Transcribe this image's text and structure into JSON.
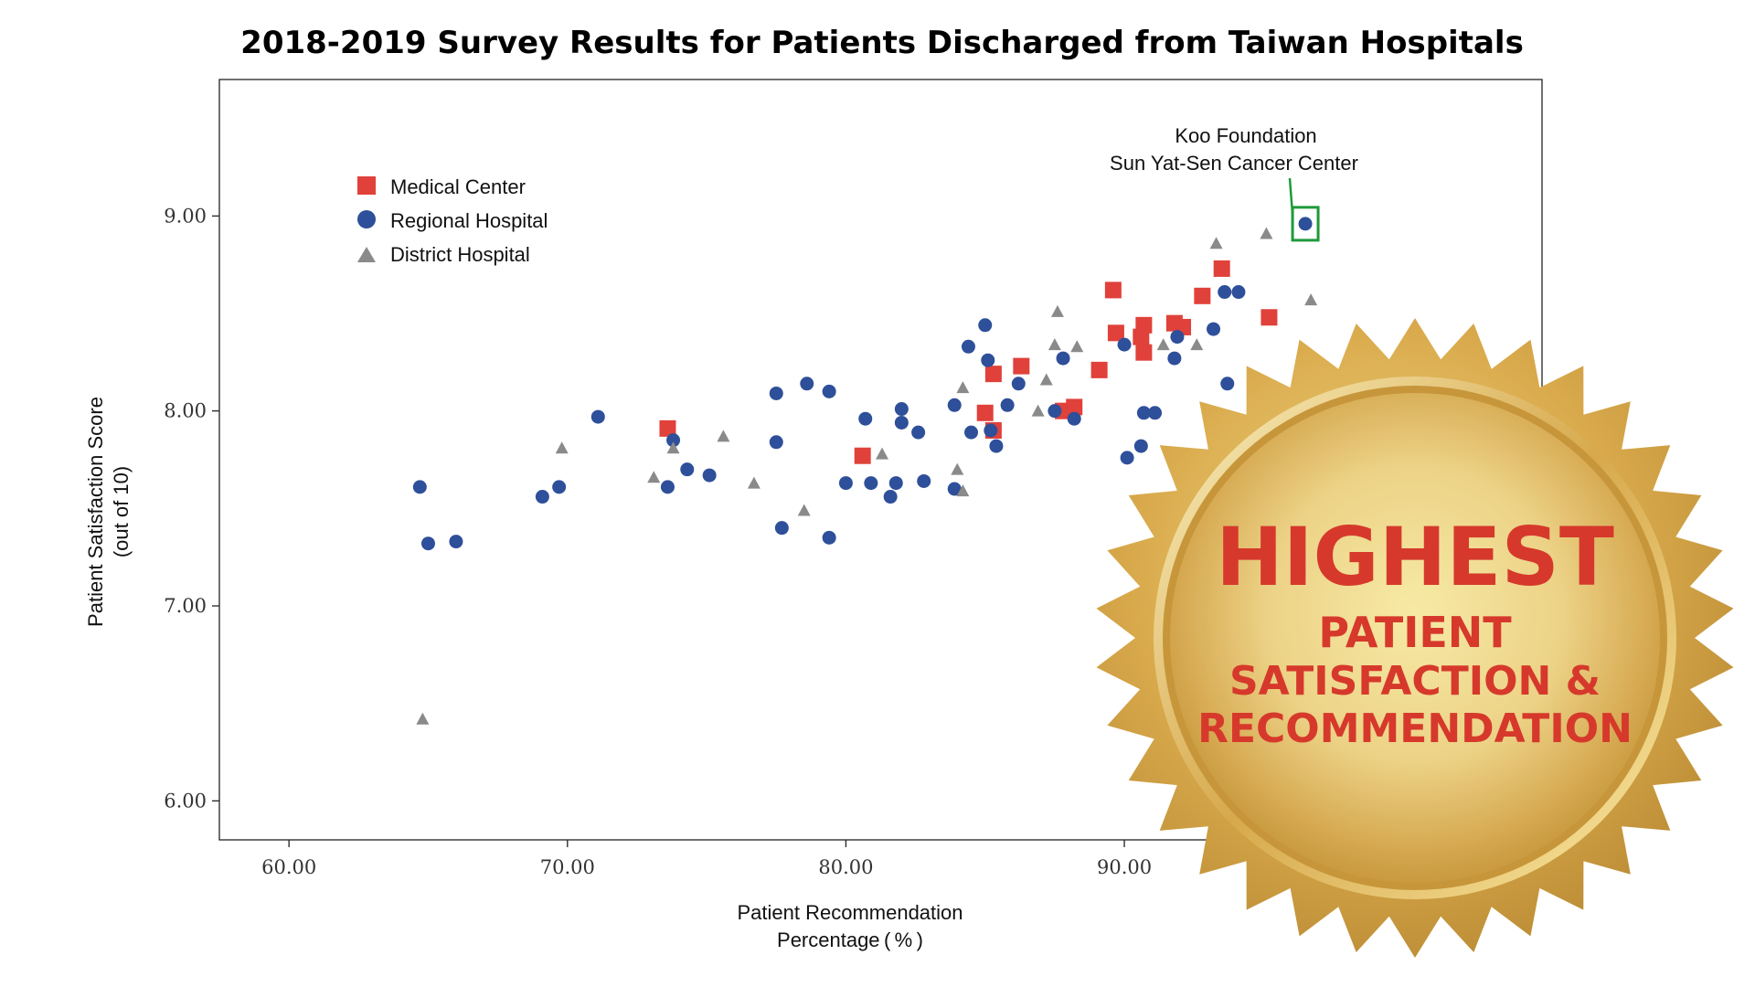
{
  "chart_data": {
    "type": "scatter",
    "title": "2018-2019 Survey Results for Patients Discharged from Taiwan Hospitals",
    "xlabel_line1": "Patient Recommendation",
    "xlabel_line2": "Percentage ( % )",
    "ylabel_line1": "Patient Satisfaction Score",
    "ylabel_line2": "(out of 10)",
    "xlim": [
      57.5,
      105
    ],
    "ylim": [
      5.8,
      9.7
    ],
    "x_ticks": [
      60,
      70,
      80,
      90
    ],
    "x_tick_labels": [
      "60.00",
      "70.00",
      "80.00",
      "90.00"
    ],
    "y_ticks": [
      6,
      7,
      8,
      9
    ],
    "y_tick_labels": [
      "6.00",
      "7.00",
      "8.00",
      "9.00"
    ],
    "grid": false,
    "legend_position": "top-left",
    "series": [
      {
        "name": "Medical Center",
        "marker": "square",
        "color": "#e0413a",
        "points": [
          [
            73.6,
            7.91
          ],
          [
            80.6,
            7.77
          ],
          [
            85.0,
            7.99
          ],
          [
            85.3,
            8.19
          ],
          [
            85.3,
            7.9
          ],
          [
            86.3,
            8.23
          ],
          [
            87.8,
            8.0
          ],
          [
            88.2,
            8.02
          ],
          [
            89.1,
            8.21
          ],
          [
            89.6,
            8.62
          ],
          [
            89.7,
            8.4
          ],
          [
            90.6,
            8.38
          ],
          [
            90.7,
            8.44
          ],
          [
            90.7,
            8.3
          ],
          [
            91.8,
            8.45
          ],
          [
            92.1,
            8.43
          ],
          [
            92.8,
            8.59
          ],
          [
            93.5,
            8.73
          ],
          [
            95.2,
            8.48
          ]
        ]
      },
      {
        "name": "Regional Hospital",
        "marker": "circle",
        "color": "#2e4f9a",
        "points": [
          [
            64.7,
            7.61
          ],
          [
            65.0,
            7.32
          ],
          [
            66.0,
            7.33
          ],
          [
            69.1,
            7.56
          ],
          [
            69.7,
            7.61
          ],
          [
            71.1,
            7.97
          ],
          [
            73.6,
            7.61
          ],
          [
            73.8,
            7.85
          ],
          [
            74.3,
            7.7
          ],
          [
            75.1,
            7.67
          ],
          [
            77.5,
            8.09
          ],
          [
            77.5,
            7.84
          ],
          [
            77.7,
            7.4
          ],
          [
            78.6,
            8.14
          ],
          [
            79.4,
            8.1
          ],
          [
            79.4,
            7.35
          ],
          [
            80.0,
            7.63
          ],
          [
            80.7,
            7.96
          ],
          [
            80.9,
            7.63
          ],
          [
            81.6,
            7.56
          ],
          [
            81.8,
            7.63
          ],
          [
            82.0,
            8.01
          ],
          [
            82.0,
            7.94
          ],
          [
            82.6,
            7.89
          ],
          [
            82.8,
            7.64
          ],
          [
            83.9,
            8.03
          ],
          [
            83.9,
            7.6
          ],
          [
            84.4,
            8.33
          ],
          [
            84.5,
            7.89
          ],
          [
            85.0,
            8.44
          ],
          [
            85.1,
            8.26
          ],
          [
            85.2,
            7.9
          ],
          [
            85.4,
            7.82
          ],
          [
            85.8,
            8.03
          ],
          [
            86.2,
            8.14
          ],
          [
            87.5,
            8.0
          ],
          [
            87.8,
            8.27
          ],
          [
            88.2,
            7.96
          ],
          [
            90.0,
            8.34
          ],
          [
            90.1,
            7.76
          ],
          [
            90.6,
            7.82
          ],
          [
            90.7,
            7.99
          ],
          [
            91.1,
            7.99
          ],
          [
            91.8,
            8.27
          ],
          [
            91.9,
            8.38
          ],
          [
            93.2,
            8.42
          ],
          [
            93.6,
            8.61
          ],
          [
            93.7,
            8.14
          ],
          [
            94.1,
            8.61
          ],
          [
            96.5,
            8.96
          ]
        ]
      },
      {
        "name": "District Hospital",
        "marker": "triangle",
        "color": "#8a8a8a",
        "points": [
          [
            64.8,
            6.42
          ],
          [
            69.8,
            7.81
          ],
          [
            73.1,
            7.66
          ],
          [
            73.8,
            7.81
          ],
          [
            75.6,
            7.87
          ],
          [
            76.7,
            7.63
          ],
          [
            78.5,
            7.49
          ],
          [
            81.3,
            7.78
          ],
          [
            84.0,
            7.7
          ],
          [
            84.2,
            7.59
          ],
          [
            84.2,
            8.12
          ],
          [
            86.9,
            8.0
          ],
          [
            87.2,
            8.16
          ],
          [
            87.5,
            8.34
          ],
          [
            87.6,
            8.51
          ],
          [
            88.3,
            8.33
          ],
          [
            91.4,
            8.34
          ],
          [
            92.6,
            8.34
          ],
          [
            93.3,
            8.86
          ],
          [
            95.1,
            8.91
          ],
          [
            96.7,
            8.57
          ]
        ]
      }
    ],
    "annotation": {
      "line1": "Koo Foundation",
      "line2": "Sun Yat-Sen Cancer Center",
      "point": [
        96.5,
        8.96
      ],
      "box_color": "#1f9a3a",
      "line_color": "#1f9a3a"
    }
  },
  "seal": {
    "headline": "HIGHEST",
    "line1": "PATIENT",
    "line2": "SATISFACTION &",
    "line3": "RECOMMENDATION",
    "text_color": "#d6392b",
    "gold_dark": "#c99a3e",
    "gold_light": "#f7eaa6"
  }
}
